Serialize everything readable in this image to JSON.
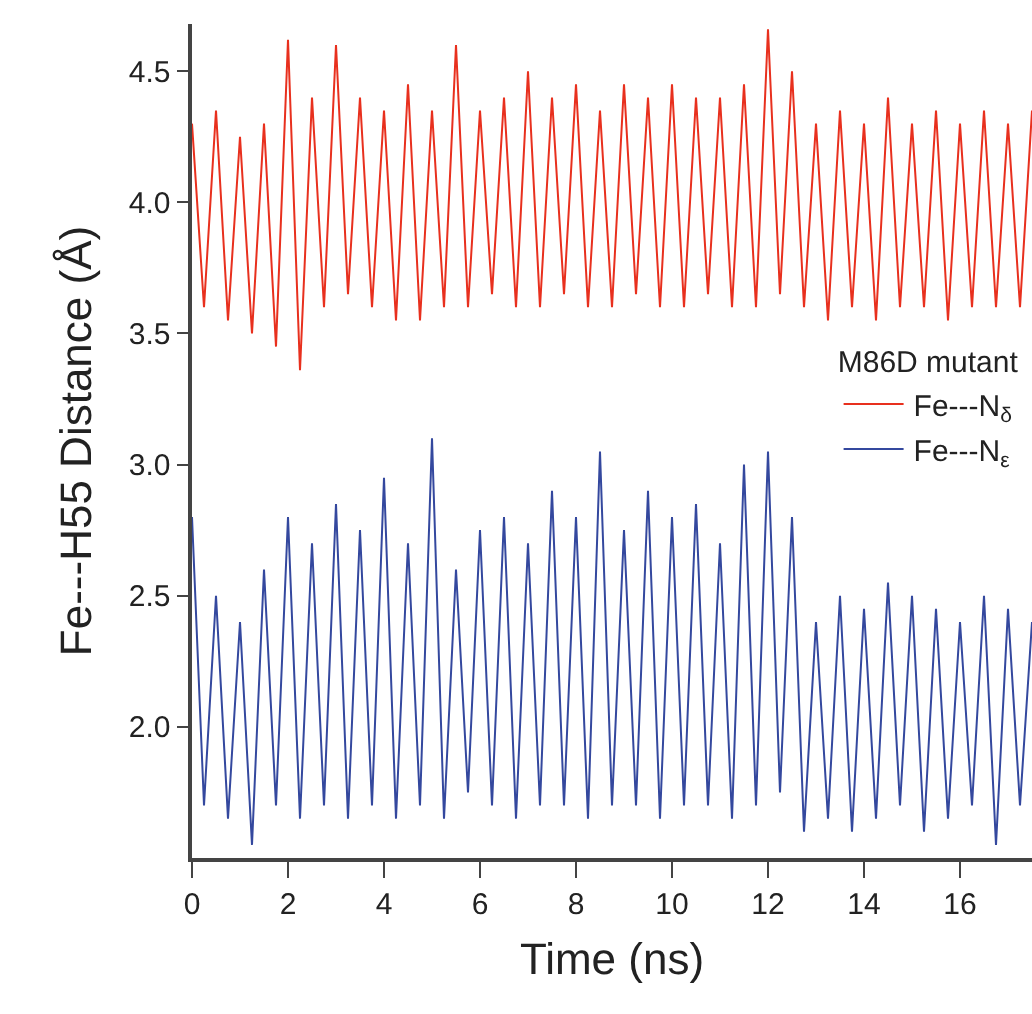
{
  "chart_data": {
    "type": "line",
    "xlabel": "Time (ns)",
    "ylabel": "Fe---H55 Distance (Å)",
    "legend_title": "M86D mutant",
    "x": [
      0,
      0.25,
      0.5,
      0.75,
      1,
      1.25,
      1.5,
      1.75,
      2,
      2.25,
      2.5,
      2.75,
      3,
      3.25,
      3.5,
      3.75,
      4,
      4.25,
      4.5,
      4.75,
      5,
      5.25,
      5.5,
      5.75,
      6,
      6.25,
      6.5,
      6.75,
      7,
      7.25,
      7.5,
      7.75,
      8,
      8.25,
      8.5,
      8.75,
      9,
      9.25,
      9.5,
      9.75,
      10,
      10.25,
      10.5,
      10.75,
      11,
      11.25,
      11.5,
      11.75,
      12,
      12.25,
      12.5,
      12.75,
      13,
      13.25,
      13.5,
      13.75,
      14,
      14.25,
      14.5,
      14.75,
      15,
      15.25,
      15.5,
      15.75,
      16,
      16.25,
      16.5,
      16.75,
      17,
      17.25,
      17.5
    ],
    "series": [
      {
        "name": "Fe---N$_{δ}$",
        "color": "#e8301e",
        "values": [
          4.3,
          3.6,
          4.35,
          3.55,
          4.25,
          3.5,
          4.3,
          3.45,
          4.62,
          3.36,
          4.4,
          3.6,
          4.6,
          3.65,
          4.4,
          3.6,
          4.35,
          3.55,
          4.45,
          3.55,
          4.35,
          3.6,
          4.6,
          3.6,
          4.35,
          3.65,
          4.4,
          3.6,
          4.5,
          3.6,
          4.4,
          3.65,
          4.45,
          3.6,
          4.35,
          3.6,
          4.45,
          3.65,
          4.4,
          3.6,
          4.45,
          3.6,
          4.4,
          3.65,
          4.4,
          3.6,
          4.45,
          3.6,
          4.66,
          3.65,
          4.5,
          3.6,
          4.3,
          3.55,
          4.35,
          3.6,
          4.3,
          3.55,
          4.4,
          3.6,
          4.3,
          3.6,
          4.35,
          3.55,
          4.3,
          3.6,
          4.35,
          3.6,
          4.3,
          3.6,
          4.35
        ]
      },
      {
        "name": "Fe---N$_{ε}$",
        "color": "#34489e",
        "values": [
          2.8,
          1.7,
          2.5,
          1.65,
          2.4,
          1.55,
          2.6,
          1.7,
          2.8,
          1.65,
          2.7,
          1.7,
          2.85,
          1.65,
          2.75,
          1.7,
          2.95,
          1.65,
          2.7,
          1.7,
          3.1,
          1.65,
          2.6,
          1.75,
          2.75,
          1.7,
          2.8,
          1.65,
          2.7,
          1.7,
          2.9,
          1.7,
          2.8,
          1.65,
          3.05,
          1.7,
          2.75,
          1.7,
          2.9,
          1.65,
          2.8,
          1.7,
          2.85,
          1.7,
          2.7,
          1.65,
          3.0,
          1.7,
          3.05,
          1.75,
          2.8,
          1.6,
          2.4,
          1.65,
          2.5,
          1.6,
          2.45,
          1.65,
          2.55,
          1.7,
          2.5,
          1.6,
          2.45,
          1.65,
          2.4,
          1.7,
          2.5,
          1.55,
          2.45,
          1.7,
          2.4
        ]
      }
    ],
    "xlim": [
      0,
      17.5
    ],
    "xticks": [
      0,
      2,
      4,
      6,
      8,
      10,
      12,
      14,
      16
    ],
    "ylim": [
      1.5,
      4.68
    ],
    "yticks": [
      {
        "value": 2,
        "label": "2.0"
      },
      {
        "value": 2.5,
        "label": "2.5"
      },
      {
        "value": 3,
        "label": "3.0"
      },
      {
        "value": 3.5,
        "label": "3.5"
      },
      {
        "value": 4,
        "label": "4.0"
      },
      {
        "value": 4.5,
        "label": "4.5"
      }
    ],
    "grid": false,
    "legend": "right",
    "marker": "none",
    "line_style": "solid"
  }
}
